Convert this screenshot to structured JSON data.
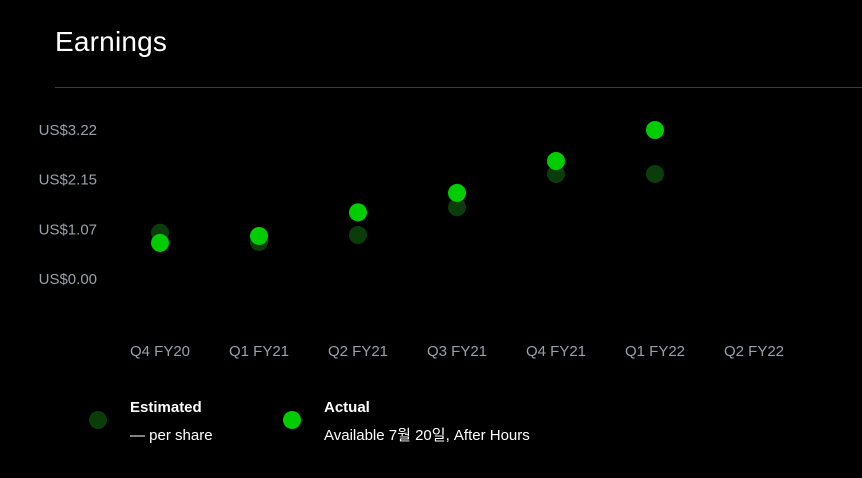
{
  "header": {
    "title": "Earnings"
  },
  "colors": {
    "background": "#000000",
    "estimated": "#0b3d0b",
    "actual": "#00cc00",
    "divider": "#3a3a3a",
    "tick_text": "#9aa0a6"
  },
  "chart_data": {
    "type": "scatter",
    "title": "Earnings",
    "categories": [
      "Q4 FY20",
      "Q1 FY21",
      "Q2 FY21",
      "Q3 FY21",
      "Q4 FY21",
      "Q1 FY22",
      "Q2 FY22"
    ],
    "y_ticks": [
      0.0,
      1.07,
      2.15,
      3.22
    ],
    "y_tick_labels": [
      "US$0.00",
      "US$1.07",
      "US$2.15",
      "US$3.22"
    ],
    "ylim": [
      0.0,
      3.22
    ],
    "grid": false,
    "legend_position": "bottom-left",
    "series": [
      {
        "name": "Estimated",
        "values": [
          1.0,
          0.8,
          0.95,
          1.55,
          2.27,
          2.27,
          null
        ]
      },
      {
        "name": "Actual",
        "values": [
          0.78,
          0.93,
          1.44,
          1.86,
          2.55,
          3.22,
          null
        ]
      }
    ]
  },
  "legend": {
    "estimated": {
      "title": "Estimated",
      "subtitle": "— per share"
    },
    "actual": {
      "title": "Actual",
      "subtitle": "Available 7월 20일, After Hours"
    }
  }
}
